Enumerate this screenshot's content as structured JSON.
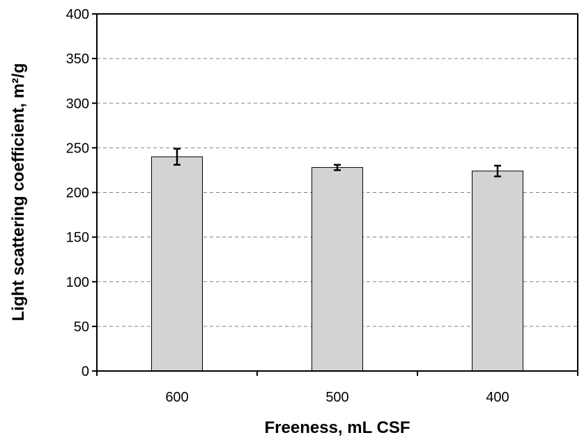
{
  "chart_data": {
    "type": "bar",
    "categories": [
      "600",
      "500",
      "400"
    ],
    "values": [
      240,
      228,
      224
    ],
    "error": [
      9,
      3,
      6
    ],
    "xlabel": "Freeness, mL CSF",
    "ylabel": "Light scattering coefficient, m²/g",
    "ylim": [
      0,
      400
    ],
    "yticks": [
      0,
      50,
      100,
      150,
      200,
      250,
      300,
      350,
      400
    ],
    "grid": "horizontal dashed",
    "bar_color": "#d3d3d3",
    "bar_edge_color": "#000000",
    "grid_color": "#808080"
  }
}
